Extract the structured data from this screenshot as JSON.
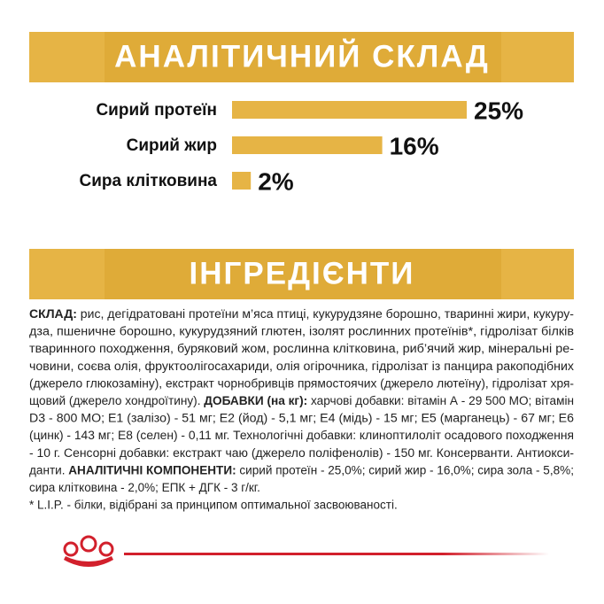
{
  "composition": {
    "title": "АНАЛІТИЧНИЙ СКЛАД",
    "items": [
      {
        "label": "Сирий протеїн",
        "value": 25,
        "value_label": "25%"
      },
      {
        "label": "Сирий жир",
        "value": 16,
        "value_label": "16%"
      },
      {
        "label": "Сира клітковина",
        "value": 2,
        "value_label": "2%"
      }
    ]
  },
  "ingredients": {
    "title": "ІНГРЕДІЄНТИ",
    "lines": [
      [
        {
          "text": "СКЛАД:",
          "bold": true
        },
        {
          "text": " рис, дегідратовані протеїни м’яса птиці, кукурудзяне борошно, тваринні жири, кукуру-",
          "bold": false
        }
      ],
      [
        {
          "text": "дза, пшеничне борошно, кукурудзяний глютен, ізолят рослинних протеїнів*, гідролізат білків",
          "bold": false
        }
      ],
      [
        {
          "text": "тваринного походження, буряковий жом, рослинна клітковина, риб’ячий жир, мінеральні ре-",
          "bold": false
        }
      ],
      [
        {
          "text": "човини, соєва олія, фруктоолігосахариди, олія огірочника, гідролізат із панцира ракоподібних",
          "bold": false
        }
      ],
      [
        {
          "text": "(джерело глюкозаміну), екстракт чорнобривців прямостоячих (джерело лютеїну), гідролізат хря-",
          "bold": false
        }
      ],
      [
        {
          "text": "щовий (джерело хондроїтину). ",
          "bold": false
        },
        {
          "text": "ДОБАВКИ (на кг):",
          "bold": true
        },
        {
          "text": " харчові добавки: вітамін А - 29 500 МО; вітамін",
          "bold": false
        }
      ],
      [
        {
          "text": "D3 - 800 МО; Е1 (залізо) - 51 мг; Е2 (йод) - 5,1 мг; Е4 (мідь) - 15 мг; Е5 (марганець) - 67 мг; Е6",
          "bold": false
        }
      ],
      [
        {
          "text": "(цинк) - 143 мг; Е8 (селен) - 0,11 мг. Технологічні добавки: клиноптилоліт осадового походження",
          "bold": false
        }
      ],
      [
        {
          "text": "- 10 г. Сенсорні добавки: екстракт чаю (джерело поліфенолів) - 150 мг. Консерванти. Антиокси-",
          "bold": false
        }
      ],
      [
        {
          "text": "данти. ",
          "bold": false
        },
        {
          "text": "АНАЛІТИЧНІ КОМПОНЕНТИ:",
          "bold": true
        },
        {
          "text": " сирий протеїн - 25,0%; сирий жир - 16,0%; сира зола - 5,8%;",
          "bold": false
        }
      ],
      [
        {
          "text": "сира клітковина - 2,0%; ЕПК + ДГК - 3 г/кг.",
          "bold": false
        }
      ],
      [
        {
          "text": "* L.I.P. - білки, відібрані за принципом оптимальної засвоюваності.",
          "bold": false
        }
      ]
    ]
  }
}
